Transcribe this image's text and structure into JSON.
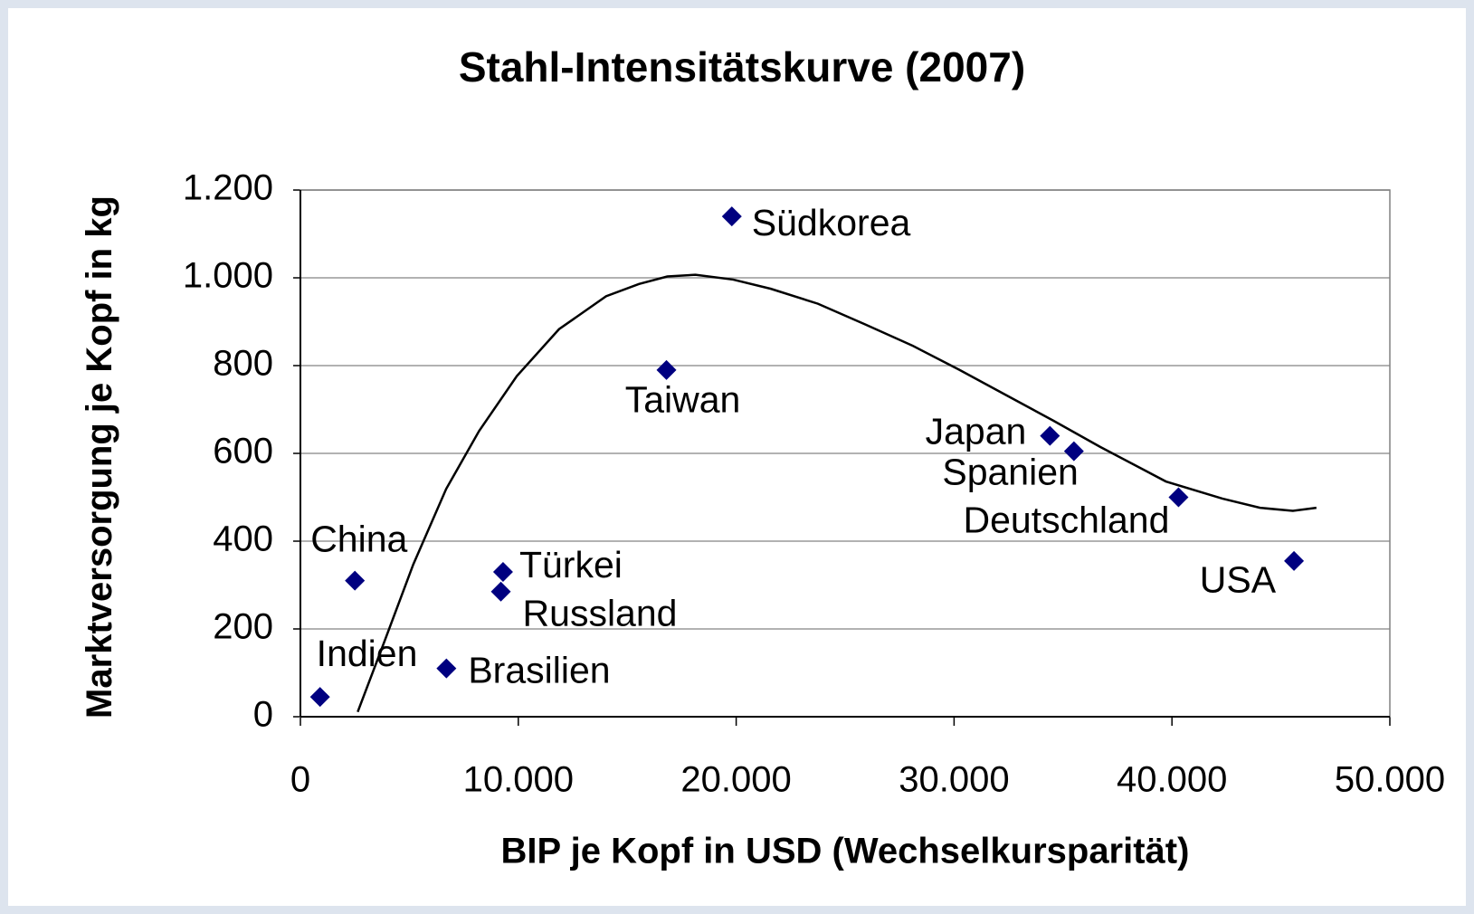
{
  "chart_data": {
    "type": "scatter",
    "title": "Stahl-Intensitätskurve (2007)",
    "xlabel": "BIP je Kopf in USD (Wechselkursparität)",
    "ylabel": "Marktversorgung je Kopf in kg",
    "color": "#000080",
    "points": {
      "labels": [
        "Südkorea",
        "Taiwan",
        "Japan",
        "Spanien",
        "Deutschland",
        "USA",
        "China",
        "Türkei",
        "Russland",
        "Brasilien",
        "Indien"
      ],
      "x": [
        19800,
        16800,
        34400,
        35500,
        40300,
        45600,
        2500,
        9300,
        9200,
        6700,
        900
      ],
      "y": [
        1140,
        790,
        640,
        605,
        500,
        355,
        310,
        330,
        285,
        110,
        45
      ]
    },
    "curve": {
      "color": "#000000",
      "x": [
        2630,
        3890,
        5180,
        6690,
        8200,
        9930,
        11870,
        14030,
        15540,
        16840,
        18130,
        19860,
        21590,
        23750,
        25910,
        28070,
        30220,
        32380,
        34540,
        36700,
        39720,
        42310,
        44040,
        45550,
        46630
      ],
      "y": [
        11,
        176,
        347,
        519,
        651,
        776,
        883,
        958,
        986,
        1003,
        1007,
        996,
        975,
        941,
        894,
        846,
        791,
        733,
        675,
        615,
        536,
        497,
        476,
        469,
        476
      ]
    },
    "xlim": [
      0,
      50000
    ],
    "ylim": [
      0,
      1200
    ],
    "xticks": [
      0,
      {
        "value": 10000,
        "label": "10.000"
      },
      {
        "value": 20000,
        "label": "20.000"
      },
      {
        "value": 30000,
        "label": "30.000"
      },
      {
        "value": 40000,
        "label": "40.000"
      },
      {
        "value": 50000,
        "label": "50.000"
      }
    ],
    "yticks": [
      0,
      200,
      400,
      600,
      800,
      {
        "value": 1000,
        "label": "1.000"
      },
      {
        "value": 1200,
        "label": "1.200"
      }
    ],
    "grid": true
  }
}
